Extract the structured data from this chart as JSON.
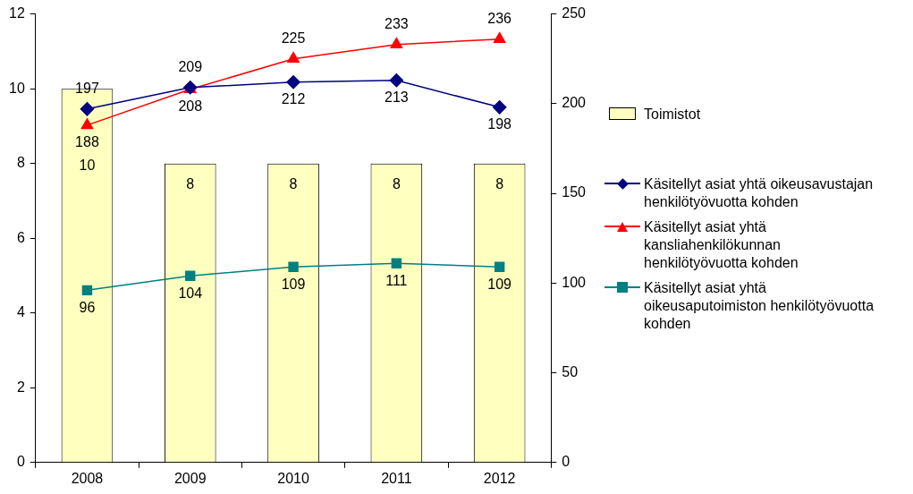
{
  "chart_data": {
    "type": "bar",
    "categories": [
      "2008",
      "2009",
      "2010",
      "2011",
      "2012"
    ],
    "series": [
      {
        "name": "Toimistot",
        "color": "#ffffc0",
        "values": [
          10,
          8,
          8,
          8,
          8
        ]
      },
      {
        "name": "Käsitellyt asiat yhtä oikeusavustajan henkilötyövuotta kohden",
        "type": "line",
        "axis": "y2",
        "marker": "diamond",
        "color": "#000080",
        "values": [
          197,
          209,
          212,
          213,
          198
        ]
      },
      {
        "name": "Käsitellyt asiat yhtä kansliahenkilökunnan henkilötyövuotta kohden",
        "type": "line",
        "axis": "y2",
        "marker": "triangle",
        "color": "#ff0000",
        "values": [
          188,
          208,
          225,
          233,
          236
        ]
      },
      {
        "name": "Käsitellyt asiat yhtä oikeusaputoimiston henkilötyövuotta kohden",
        "type": "line",
        "axis": "y2",
        "marker": "square",
        "color": "#008080",
        "values": [
          96,
          104,
          109,
          111,
          109
        ]
      }
    ],
    "ylim": [
      0,
      12
    ],
    "yticks": [
      0,
      2,
      4,
      6,
      8,
      10,
      12
    ],
    "y2lim": [
      0,
      250
    ],
    "y2ticks": [
      0,
      50,
      100,
      150,
      200,
      250
    ],
    "data_labels": true,
    "legend": "right",
    "grid": false
  }
}
